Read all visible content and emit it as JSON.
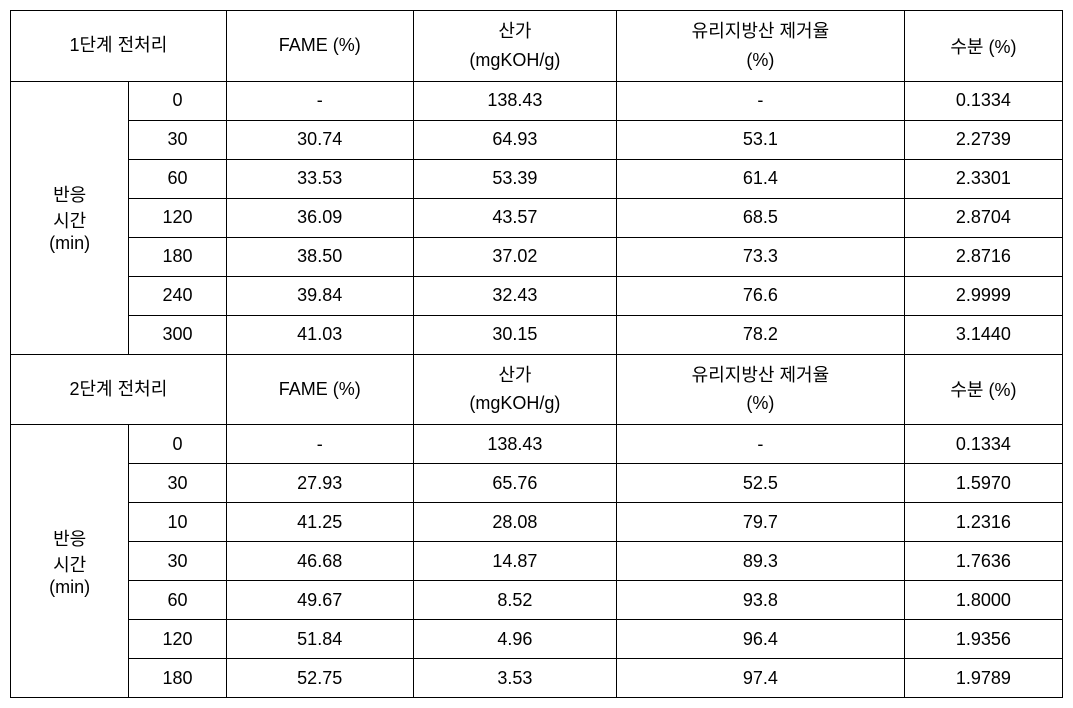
{
  "section1": {
    "title": "1단계 전처리",
    "row_label": "반응\n시간\n(min)",
    "headers": {
      "col2": "FAME (%)",
      "col3_line1": "산가",
      "col3_line2": "(mgKOH/g)",
      "col4_line1": "유리지방산 제거율",
      "col4_line2": "(%)",
      "col5": "수분 (%)"
    },
    "rows": [
      {
        "time": "0",
        "fame": "-",
        "acid": "138.43",
        "removal": "-",
        "moisture": "0.1334"
      },
      {
        "time": "30",
        "fame": "30.74",
        "acid": "64.93",
        "removal": "53.1",
        "moisture": "2.2739"
      },
      {
        "time": "60",
        "fame": "33.53",
        "acid": "53.39",
        "removal": "61.4",
        "moisture": "2.3301"
      },
      {
        "time": "120",
        "fame": "36.09",
        "acid": "43.57",
        "removal": "68.5",
        "moisture": "2.8704"
      },
      {
        "time": "180",
        "fame": "38.50",
        "acid": "37.02",
        "removal": "73.3",
        "moisture": "2.8716"
      },
      {
        "time": "240",
        "fame": "39.84",
        "acid": "32.43",
        "removal": "76.6",
        "moisture": "2.9999"
      },
      {
        "time": "300",
        "fame": "41.03",
        "acid": "30.15",
        "removal": "78.2",
        "moisture": "3.1440"
      }
    ]
  },
  "section2": {
    "title": "2단계 전처리",
    "row_label": "반응\n시간\n(min)",
    "headers": {
      "col2": "FAME (%)",
      "col3_line1": "산가",
      "col3_line2": "(mgKOH/g)",
      "col4_line1": "유리지방산 제거율",
      "col4_line2": "(%)",
      "col5": "수분 (%)"
    },
    "rows": [
      {
        "time": "0",
        "fame": "-",
        "acid": "138.43",
        "removal": "-",
        "moisture": "0.1334"
      },
      {
        "time": "30",
        "fame": "27.93",
        "acid": "65.76",
        "removal": "52.5",
        "moisture": "1.5970"
      },
      {
        "time": "10",
        "fame": "41.25",
        "acid": "28.08",
        "removal": "79.7",
        "moisture": "1.2316"
      },
      {
        "time": "30",
        "fame": "46.68",
        "acid": "14.87",
        "removal": "89.3",
        "moisture": "1.7636"
      },
      {
        "time": "60",
        "fame": "49.67",
        "acid": "8.52",
        "removal": "93.8",
        "moisture": "1.8000"
      },
      {
        "time": "120",
        "fame": "51.84",
        "acid": "4.96",
        "removal": "96.4",
        "moisture": "1.9356"
      },
      {
        "time": "180",
        "fame": "52.75",
        "acid": "3.53",
        "removal": "97.4",
        "moisture": "1.9789"
      }
    ]
  },
  "col_widths": {
    "c1": "100px",
    "c2": "90px",
    "c3": "180px",
    "c4": "210px",
    "c5": "280px",
    "c6": "180px"
  }
}
